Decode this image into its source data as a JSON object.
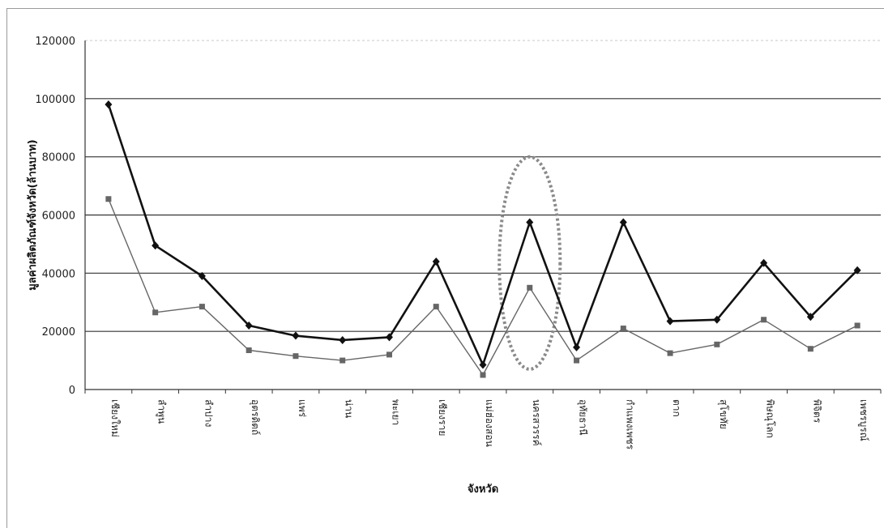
{
  "chart_data": {
    "type": "line",
    "title": "",
    "xlabel": "จังหวัด",
    "ylabel": "มูลค่าผลิตภัณฑ์จังหวัด(ล้านบาท)",
    "ylim": [
      0,
      120000
    ],
    "yticks": [
      0,
      20000,
      40000,
      60000,
      80000,
      100000,
      120000
    ],
    "ytick_labels": [
      "0",
      "20000",
      "40000",
      "60000",
      "80000",
      "100000",
      "120000"
    ],
    "grid": "horizontal",
    "categories": [
      "เชียงใหม่",
      "ลำพูน",
      "ลำปาง",
      "อุตรดิตถ์",
      "แพร่",
      "น่าน",
      "พะเยา",
      "เชียงราย",
      "แม่ฮ่องสอน",
      "นครสวรรค์",
      "อุทัยธานี",
      "กำแพงเพชร",
      "ตาก",
      "สุโขทัย",
      "พิษณุโลก",
      "พิจิตร",
      "เพชรบูรณ์"
    ],
    "series": [
      {
        "name": "",
        "color": "#111111",
        "marker": "diamond",
        "values": [
          98000,
          49500,
          39000,
          22000,
          18500,
          17000,
          18000,
          44000,
          8500,
          57500,
          14500,
          57500,
          23500,
          24000,
          43500,
          25000,
          41000
        ]
      },
      {
        "name": "",
        "color": "#666666",
        "marker": "square",
        "values": [
          65500,
          26500,
          28500,
          13500,
          11500,
          10000,
          12000,
          28500,
          5000,
          35000,
          10000,
          21000,
          12500,
          15500,
          24000,
          14000,
          22000
        ]
      }
    ],
    "annotations": [
      {
        "type": "dotted-ellipse",
        "around_category": "นครสวรรค์",
        "y_range": [
          7000,
          80000
        ],
        "x_span": 1.3
      }
    ]
  }
}
